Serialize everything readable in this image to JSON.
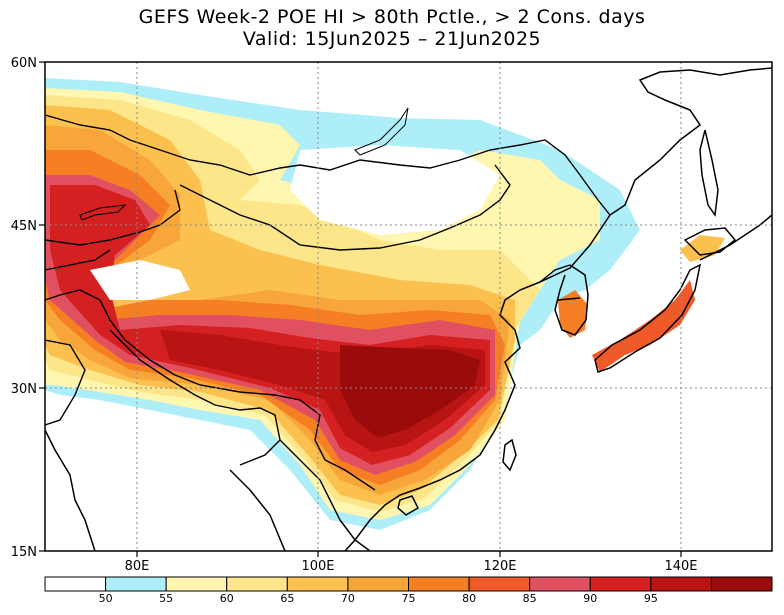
{
  "title": {
    "line1": "GEFS Week-2 POE HI > 80th Pctle., > 2 Cons. days",
    "line2": "Valid: 15Jun2025 – 21Jun2025"
  },
  "lat_labels": [
    "60N",
    "45N",
    "30N",
    "15N"
  ],
  "lon_labels": [
    "80E",
    "100E",
    "120E",
    "140E"
  ],
  "colorbar": {
    "colors": [
      "#ffffff",
      "#aeeef8",
      "#fff6b0",
      "#fde68a",
      "#fbc04e",
      "#f8a53a",
      "#f57f22",
      "#f05a28",
      "#e05060",
      "#d42020",
      "#b81414",
      "#9a0c0c"
    ],
    "labels": [
      "50",
      "55",
      "60",
      "65",
      "70",
      "75",
      "80",
      "85",
      "90",
      "95"
    ]
  }
}
